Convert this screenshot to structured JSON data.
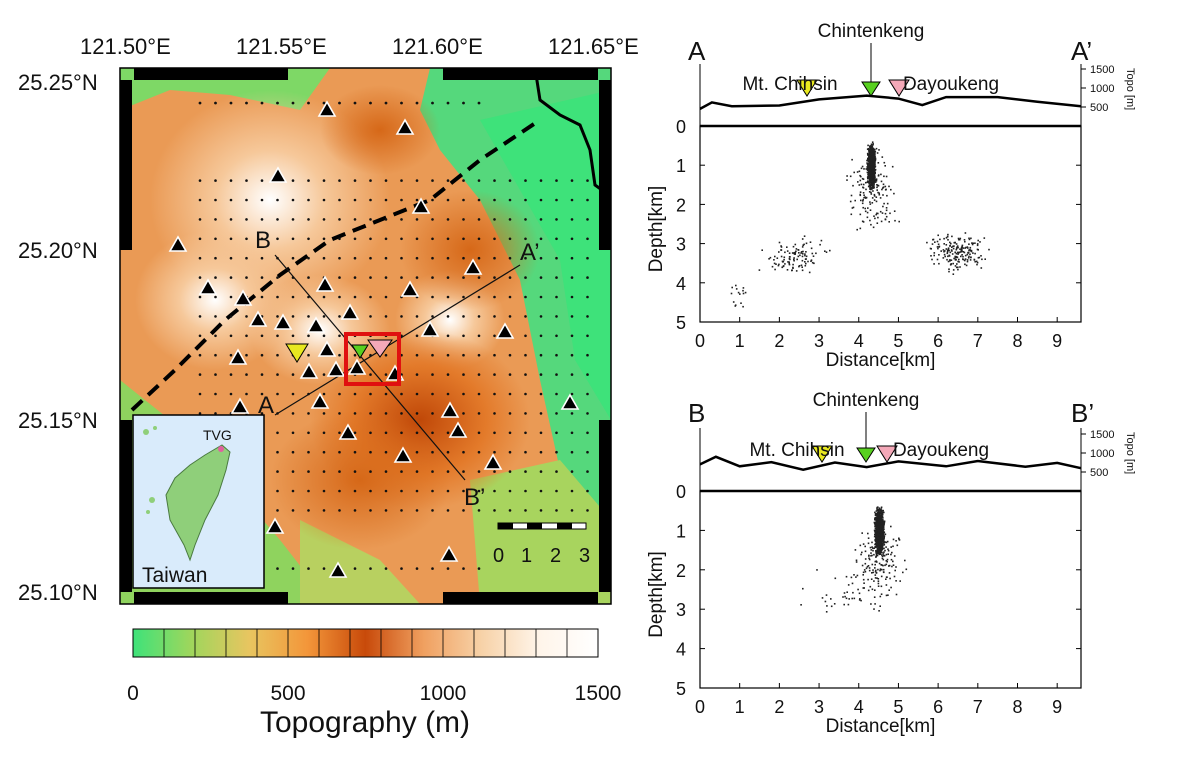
{
  "map": {
    "lon_labels": [
      "121.50°E",
      "121.55°E",
      "121.60°E",
      "121.65°E"
    ],
    "lat_labels": [
      "25.25°N",
      "25.20°N",
      "25.15°N",
      "25.10°N"
    ],
    "profile_labels": {
      "a": "A",
      "a_prime": "A’",
      "b": "B",
      "b_prime": "B’"
    },
    "scale_ticks": [
      "0",
      "1",
      "2",
      "3"
    ],
    "inset": {
      "title": "Taiwan",
      "station": "TVG"
    },
    "colors": {
      "red_box": "#e01010",
      "volcano_yellow": "#e8e820",
      "volcano_green": "#58d020",
      "volcano_pink": "#f4a8b8"
    }
  },
  "colorbar": {
    "title": "Topography (m)",
    "ticks": [
      "0",
      "500",
      "1000",
      "1500"
    ],
    "stops": [
      "#3ee27a",
      "#9fd65c",
      "#e8c560",
      "#f3963a",
      "#c84a0a",
      "#f0a060",
      "#f7d2a8",
      "#fff5ea",
      "#ffffff"
    ]
  },
  "profiles": [
    {
      "id": "A",
      "left_label": "A",
      "right_label": "A’",
      "peaks": {
        "yellow": "Mt. Chihsin",
        "green": "Chintenkeng",
        "pink": "Dayoukeng"
      },
      "topo_ticks": [
        "1500",
        "1000",
        "500"
      ],
      "topo_label": "Topo [m]",
      "depth_ticks": [
        "0",
        "1",
        "2",
        "3",
        "4",
        "5"
      ],
      "distance_ticks": [
        "0",
        "1",
        "2",
        "3",
        "4",
        "5",
        "6",
        "7",
        "8",
        "9"
      ],
      "ylabel": "Depth[km]",
      "xlabel": "Distance[km]"
    },
    {
      "id": "B",
      "left_label": "B",
      "right_label": "B’",
      "peaks": {
        "yellow": "Mt. Chihsin",
        "green": "Chintenkeng",
        "pink": "Dayoukeng"
      },
      "topo_ticks": [
        "1500",
        "1000",
        "500"
      ],
      "topo_label": "Topo [m]",
      "depth_ticks": [
        "0",
        "1",
        "2",
        "3",
        "4",
        "5"
      ],
      "distance_ticks": [
        "0",
        "1",
        "2",
        "3",
        "4",
        "5",
        "6",
        "7",
        "8",
        "9"
      ],
      "ylabel": "Depth[km]",
      "xlabel": "Distance[km]"
    }
  ]
}
